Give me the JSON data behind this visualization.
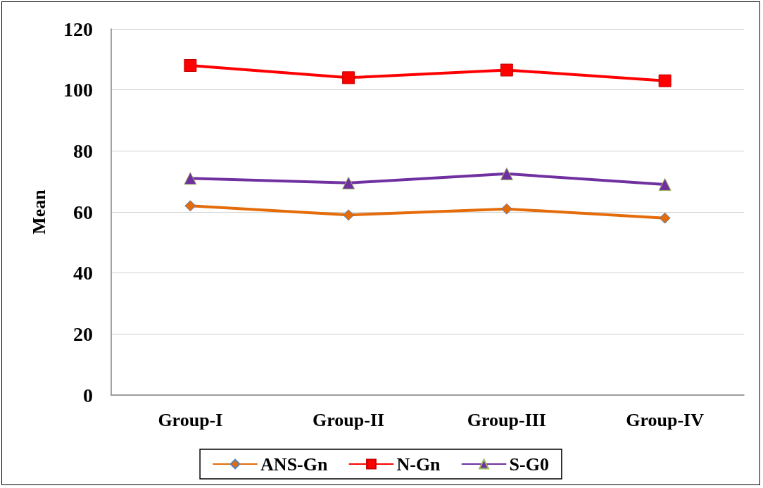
{
  "chart_data": {
    "type": "line",
    "ylabel": "Mean",
    "categories": [
      "Group-I",
      "Group-II",
      "Group-III",
      "Group-IV"
    ],
    "series": [
      {
        "name": "ANS-Gn",
        "color": "#e46c0a",
        "marker": "diamond",
        "values": [
          62,
          59,
          61,
          58
        ]
      },
      {
        "name": "N-Gn",
        "color": "#ff0000",
        "marker": "square",
        "values": [
          108,
          104,
          106.5,
          103
        ]
      },
      {
        "name": "S-G0",
        "color": "#7030a0",
        "marker": "triangle",
        "values": [
          71,
          69.5,
          72.5,
          69
        ]
      }
    ],
    "ylim": [
      0,
      120
    ],
    "yticks": [
      0,
      20,
      40,
      60,
      80,
      100,
      120
    ],
    "grid": "y",
    "legend": "bottom",
    "line_style": "solid"
  }
}
